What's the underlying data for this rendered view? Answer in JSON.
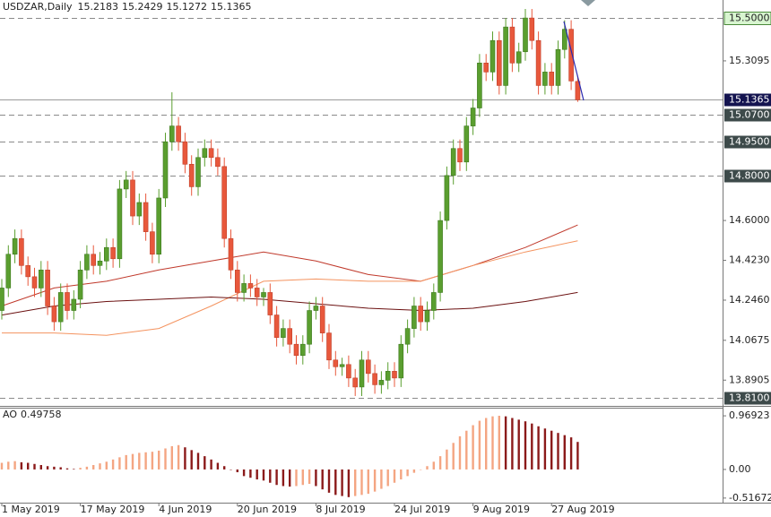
{
  "chart_data": {
    "type": "candlestick",
    "symbol": "USDZAR,Daily",
    "ohlc_label": [
      15.2183,
      15.2429,
      15.1272,
      15.1365
    ],
    "categories": [
      "1 May 2019",
      null,
      null,
      null,
      null,
      null,
      null,
      null,
      null,
      null,
      null,
      null,
      "17 May 2019",
      null,
      null,
      null,
      null,
      null,
      null,
      null,
      null,
      null,
      null,
      null,
      "4 Jun 2019",
      null,
      null,
      null,
      null,
      null,
      null,
      null,
      null,
      null,
      null,
      null,
      "20 Jun 2019",
      null,
      null,
      null,
      null,
      null,
      null,
      null,
      null,
      null,
      null,
      null,
      "8 Jul 2019",
      null,
      null,
      null,
      null,
      null,
      null,
      null,
      null,
      null,
      null,
      null,
      "24 Jul 2019",
      null,
      null,
      null,
      null,
      null,
      null,
      null,
      null,
      null,
      null,
      null,
      "9 Aug 2019",
      null,
      null,
      null,
      null,
      null,
      null,
      null,
      null,
      null,
      null,
      null,
      "27 Aug 2019",
      null,
      null,
      null,
      null
    ],
    "open": [
      14.2,
      14.3,
      14.45,
      14.52,
      14.4,
      14.35,
      14.3,
      14.38,
      14.22,
      14.15,
      14.28,
      14.2,
      14.25,
      14.38,
      14.45,
      14.4,
      14.42,
      14.48,
      14.43,
      14.74,
      14.78,
      14.62,
      14.68,
      14.55,
      14.45,
      14.7,
      14.95,
      15.02,
      14.95,
      14.85,
      14.75,
      14.88,
      14.92,
      14.88,
      14.84,
      14.52,
      14.38,
      14.28,
      14.32,
      14.3,
      14.26,
      14.28,
      14.18,
      14.08,
      14.12,
      14.05,
      14.0,
      14.05,
      14.2,
      14.22,
      14.1,
      13.98,
      13.95,
      13.96,
      13.9,
      13.86,
      13.98,
      13.92,
      13.87,
      13.89,
      13.93,
      13.9,
      14.05,
      14.12,
      14.22,
      14.15,
      14.2,
      14.28,
      14.6,
      14.8,
      14.92,
      14.86,
      15.02,
      15.1,
      15.3,
      15.26,
      15.4,
      15.2,
      15.46,
      15.3,
      15.35,
      15.5,
      15.4,
      15.2,
      15.26,
      15.2,
      15.36,
      15.45,
      15.2183
    ],
    "high": [
      14.34,
      14.49,
      14.56,
      14.56,
      14.44,
      14.39,
      14.42,
      14.42,
      14.26,
      14.32,
      14.32,
      14.29,
      14.42,
      14.49,
      14.49,
      14.46,
      14.52,
      14.52,
      14.78,
      14.82,
      14.82,
      14.72,
      14.72,
      14.59,
      14.74,
      14.99,
      15.17,
      15.06,
      14.99,
      14.89,
      14.92,
      14.96,
      14.96,
      14.92,
      14.88,
      14.56,
      14.42,
      14.36,
      14.36,
      14.34,
      14.3,
      14.32,
      14.22,
      14.16,
      14.16,
      14.09,
      14.09,
      14.24,
      14.26,
      14.26,
      14.14,
      14.02,
      13.99,
      14.0,
      13.94,
      14.02,
      14.02,
      13.96,
      13.93,
      13.97,
      13.97,
      14.09,
      14.16,
      14.26,
      14.26,
      14.24,
      14.32,
      14.64,
      14.84,
      14.96,
      14.96,
      15.06,
      15.14,
      15.34,
      15.34,
      15.44,
      15.44,
      15.5,
      15.5,
      15.39,
      15.54,
      15.54,
      15.44,
      15.3,
      15.3,
      15.4,
      15.49,
      15.49,
      15.2429
    ],
    "low": [
      14.16,
      14.26,
      14.41,
      14.36,
      14.31,
      14.26,
      14.26,
      14.18,
      14.11,
      14.11,
      14.16,
      14.16,
      14.21,
      14.34,
      14.36,
      14.36,
      14.38,
      14.39,
      14.39,
      14.7,
      14.58,
      14.58,
      14.51,
      14.41,
      14.41,
      14.66,
      14.91,
      14.91,
      14.81,
      14.71,
      14.71,
      14.84,
      14.84,
      14.8,
      14.48,
      14.34,
      14.24,
      14.24,
      14.26,
      14.22,
      14.22,
      14.14,
      14.04,
      14.04,
      14.01,
      13.96,
      13.96,
      14.01,
      14.16,
      14.06,
      13.94,
      13.91,
      13.91,
      13.86,
      13.82,
      13.82,
      13.88,
      13.83,
      13.83,
      13.85,
      13.86,
      13.86,
      14.01,
      14.08,
      14.11,
      14.11,
      14.16,
      14.24,
      14.56,
      14.76,
      14.82,
      14.82,
      14.98,
      15.06,
      15.22,
      15.22,
      15.16,
      15.16,
      15.26,
      15.26,
      15.31,
      15.36,
      15.16,
      15.16,
      15.16,
      15.16,
      15.32,
      15.18,
      15.1272
    ],
    "close": [
      14.3,
      14.45,
      14.52,
      14.4,
      14.35,
      14.3,
      14.38,
      14.22,
      14.15,
      14.28,
      14.2,
      14.25,
      14.38,
      14.45,
      14.4,
      14.42,
      14.48,
      14.43,
      14.74,
      14.78,
      14.62,
      14.68,
      14.55,
      14.45,
      14.7,
      14.95,
      15.02,
      14.95,
      14.85,
      14.75,
      14.88,
      14.92,
      14.88,
      14.84,
      14.52,
      14.38,
      14.28,
      14.32,
      14.3,
      14.26,
      14.28,
      14.18,
      14.08,
      14.12,
      14.05,
      14.0,
      14.05,
      14.2,
      14.22,
      14.1,
      13.98,
      13.95,
      13.96,
      13.9,
      13.86,
      13.98,
      13.92,
      13.87,
      13.89,
      13.93,
      13.9,
      14.05,
      14.12,
      14.22,
      14.15,
      14.2,
      14.28,
      14.6,
      14.8,
      14.92,
      14.86,
      15.02,
      15.1,
      15.3,
      15.26,
      15.4,
      15.2,
      15.46,
      15.3,
      15.35,
      15.5,
      15.4,
      15.2,
      15.26,
      15.2,
      15.36,
      15.45,
      15.22,
      15.1365
    ],
    "up_color": "#5a9e2f",
    "down_color": "#e8583c",
    "ylim": [
      13.78,
      15.58
    ],
    "yticks": [
      15.3095,
      {
        "value": 14.6,
        "label": "14.6000"
      },
      {
        "value": 14.423,
        "label": "14.4230"
      },
      {
        "value": 14.246,
        "label": "14.2460"
      },
      14.0675,
      13.8905
    ],
    "levels": [
      {
        "value": 15.5,
        "label": "15.5000"
      },
      {
        "value": 15.07,
        "label": "15.0700"
      },
      {
        "value": 14.95,
        "label": "14.9500"
      },
      {
        "value": 14.8,
        "label": "14.8000"
      },
      {
        "value": 13.81,
        "label": "13.8100"
      }
    ],
    "current_price": 15.1365,
    "moving_averages": [
      {
        "color": "#c0392b",
        "x": [
          0,
          8,
          16,
          24,
          32,
          40,
          48,
          56,
          64,
          72,
          80,
          88
        ],
        "values": [
          14.22,
          14.3,
          14.33,
          14.38,
          14.42,
          14.46,
          14.42,
          14.36,
          14.33,
          14.4,
          14.48,
          14.58
        ]
      },
      {
        "color": "#f4935f",
        "x": [
          0,
          8,
          16,
          24,
          32,
          40,
          48,
          56,
          64,
          72,
          80,
          88
        ],
        "values": [
          14.1,
          14.1,
          14.09,
          14.12,
          14.22,
          14.33,
          14.34,
          14.33,
          14.33,
          14.4,
          14.46,
          14.51
        ]
      },
      {
        "color": "#6b1010",
        "x": [
          0,
          8,
          16,
          24,
          32,
          40,
          48,
          56,
          64,
          72,
          80,
          88
        ],
        "values": [
          14.18,
          14.22,
          14.24,
          14.25,
          14.26,
          14.25,
          14.23,
          14.21,
          14.2,
          14.21,
          14.24,
          14.28
        ]
      }
    ],
    "indicator": {
      "type": "bar",
      "name": "AO",
      "up_color": "#f4a582",
      "down_color": "#8b1a1a",
      "ylim": [
        -0.6,
        1.1
      ],
      "yticks": [
        0.96923,
        {
          "value": 0,
          "label": "0.00"
        },
        -0.51672
      ],
      "values": [
        0.12,
        0.14,
        0.15,
        0.13,
        0.12,
        0.1,
        0.08,
        0.06,
        0.05,
        0.04,
        0.02,
        0.01,
        0.03,
        0.05,
        0.08,
        0.11,
        0.14,
        0.18,
        0.22,
        0.26,
        0.28,
        0.3,
        0.31,
        0.32,
        0.34,
        0.38,
        0.42,
        0.44,
        0.4,
        0.35,
        0.3,
        0.24,
        0.18,
        0.12,
        0.06,
        0.0,
        -0.05,
        -0.12,
        -0.15,
        -0.18,
        -0.2,
        -0.24,
        -0.28,
        -0.3,
        -0.31,
        -0.3,
        -0.28,
        -0.26,
        -0.3,
        -0.36,
        -0.42,
        -0.46,
        -0.48,
        -0.5,
        -0.48,
        -0.46,
        -0.44,
        -0.4,
        -0.35,
        -0.3,
        -0.24,
        -0.18,
        -0.12,
        -0.06,
        0.0,
        0.06,
        0.14,
        0.24,
        0.36,
        0.48,
        0.6,
        0.7,
        0.8,
        0.88,
        0.93,
        0.96,
        0.97,
        0.96,
        0.93,
        0.9,
        0.87,
        0.83,
        0.78,
        0.74,
        0.7,
        0.66,
        0.62,
        0.58,
        0.49758
      ]
    }
  }
}
